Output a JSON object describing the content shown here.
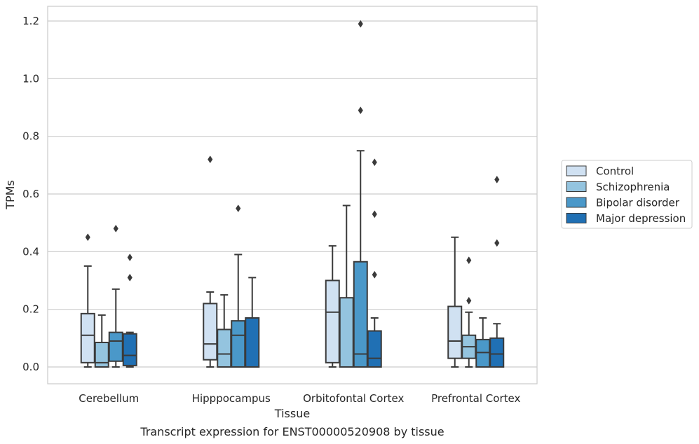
{
  "chart_data": {
    "type": "box",
    "title": "",
    "caption": "Transcript expression for ENST00000520908 by tissue",
    "xlabel": "Tissue",
    "ylabel": "TPMs",
    "ylim": [
      -0.06,
      1.25
    ],
    "yticks": [
      0.0,
      0.2,
      0.4,
      0.6,
      0.8,
      1.0,
      1.2
    ],
    "ytick_labels": [
      "0.0",
      "0.2",
      "0.4",
      "0.6",
      "0.8",
      "1.0",
      "1.2"
    ],
    "grid": "horizontal",
    "legend_position": "right",
    "categories": [
      "Cerebellum",
      "Hipppocampus",
      "Orbitofontal Cortex",
      "Prefrontal Cortex"
    ],
    "series": [
      {
        "name": "Control",
        "color": "#d0e1f2",
        "boxes": [
          {
            "whislo": 0.0,
            "q1": 0.015,
            "med": 0.11,
            "q3": 0.185,
            "whishi": 0.35,
            "fliers": [
              0.45
            ]
          },
          {
            "whislo": 0.0,
            "q1": 0.025,
            "med": 0.08,
            "q3": 0.22,
            "whishi": 0.26,
            "fliers": [
              0.72
            ]
          },
          {
            "whislo": 0.0,
            "q1": 0.015,
            "med": 0.19,
            "q3": 0.3,
            "whishi": 0.42,
            "fliers": []
          },
          {
            "whislo": 0.0,
            "q1": 0.03,
            "med": 0.09,
            "q3": 0.21,
            "whishi": 0.45,
            "fliers": []
          }
        ]
      },
      {
        "name": "Schizophrenia",
        "color": "#94c4df",
        "boxes": [
          {
            "whislo": 0.0,
            "q1": 0.0,
            "med": 0.015,
            "q3": 0.085,
            "whishi": 0.18,
            "fliers": []
          },
          {
            "whislo": 0.0,
            "q1": 0.0,
            "med": 0.045,
            "q3": 0.13,
            "whishi": 0.25,
            "fliers": []
          },
          {
            "whislo": 0.0,
            "q1": 0.0,
            "med": 0.0,
            "q3": 0.24,
            "whishi": 0.56,
            "fliers": []
          },
          {
            "whislo": 0.0,
            "q1": 0.03,
            "med": 0.07,
            "q3": 0.11,
            "whishi": 0.19,
            "fliers": [
              0.23,
              0.37
            ]
          }
        ]
      },
      {
        "name": "Bipolar disorder",
        "color": "#4a98c9",
        "boxes": [
          {
            "whislo": 0.0,
            "q1": 0.02,
            "med": 0.09,
            "q3": 0.12,
            "whishi": 0.27,
            "fliers": [
              0.48
            ]
          },
          {
            "whislo": 0.0,
            "q1": 0.0,
            "med": 0.11,
            "q3": 0.16,
            "whishi": 0.39,
            "fliers": [
              0.55
            ]
          },
          {
            "whislo": 0.0,
            "q1": 0.0,
            "med": 0.045,
            "q3": 0.365,
            "whishi": 0.75,
            "fliers": [
              0.89,
              1.19
            ]
          },
          {
            "whislo": 0.0,
            "q1": 0.0,
            "med": 0.05,
            "q3": 0.095,
            "whishi": 0.17,
            "fliers": []
          }
        ]
      },
      {
        "name": "Major depression",
        "color": "#2070b4",
        "boxes": [
          {
            "whislo": 0.0,
            "q1": 0.005,
            "med": 0.04,
            "q3": 0.115,
            "whishi": 0.12,
            "fliers": [
              0.31,
              0.38
            ]
          },
          {
            "whislo": 0.0,
            "q1": 0.0,
            "med": 0.17,
            "q3": 0.17,
            "whishi": 0.31,
            "fliers": []
          },
          {
            "whislo": 0.0,
            "q1": 0.0,
            "med": 0.03,
            "q3": 0.125,
            "whishi": 0.17,
            "fliers": [
              0.32,
              0.53,
              0.71
            ]
          },
          {
            "whislo": 0.0,
            "q1": 0.0,
            "med": 0.045,
            "q3": 0.1,
            "whishi": 0.15,
            "fliers": [
              0.43,
              0.65
            ]
          }
        ]
      }
    ]
  }
}
